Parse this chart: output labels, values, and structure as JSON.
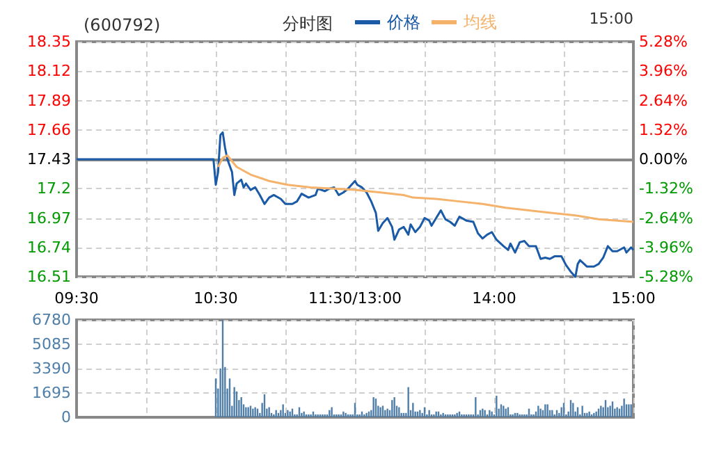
{
  "chart_data": [
    {
      "type": "line",
      "title": "(600792)",
      "subtitle": "分时图",
      "annotations": [
        "15:00"
      ],
      "legend": "top",
      "grid": true,
      "marker": "none",
      "categories": [
        "09:30",
        null,
        null,
        null,
        null,
        null,
        null,
        null,
        null,
        null,
        null,
        null,
        null,
        null,
        null,
        null,
        null,
        null,
        null,
        null,
        null,
        null,
        null,
        null,
        null,
        null,
        null,
        null,
        null,
        null,
        null,
        null,
        null,
        null,
        null,
        null,
        null,
        null,
        null,
        null,
        null,
        null,
        null,
        null,
        null,
        null,
        null,
        null,
        null,
        null,
        null,
        null,
        null,
        null,
        null,
        null,
        null,
        null,
        null,
        null,
        "10:30",
        null,
        null,
        null,
        null,
        null,
        null,
        null,
        null,
        null,
        null,
        null,
        null,
        null,
        null,
        null,
        null,
        null,
        null,
        null,
        null,
        null,
        null,
        null,
        null,
        null,
        null,
        null,
        null,
        null,
        null,
        null,
        null,
        null,
        null,
        null,
        null,
        null,
        null,
        null,
        null,
        null,
        null,
        null,
        null,
        null,
        null,
        null,
        null,
        null,
        null,
        null,
        null,
        null,
        null,
        null,
        null,
        null,
        null,
        null,
        "11:30/13:00",
        null,
        null,
        null,
        null,
        null,
        null,
        null,
        null,
        null,
        null,
        null,
        null,
        null,
        null,
        null,
        null,
        null,
        null,
        null,
        null,
        null,
        null,
        null,
        null,
        null,
        null,
        null,
        null,
        null,
        null,
        null,
        null,
        null,
        null,
        null,
        null,
        null,
        null,
        null,
        null,
        null,
        null,
        null,
        null,
        null,
        null,
        null,
        null,
        null,
        null,
        null,
        null,
        null,
        null,
        null,
        null,
        null,
        null,
        null,
        "14:00",
        null,
        null,
        null,
        null,
        null,
        null,
        null,
        null,
        null,
        null,
        null,
        null,
        null,
        null,
        null,
        null,
        null,
        null,
        null,
        null,
        null,
        null,
        null,
        null,
        null,
        null,
        null,
        null,
        null,
        null,
        null,
        null,
        null,
        null,
        null,
        null,
        null,
        null,
        null,
        null,
        null,
        null,
        null,
        null,
        null,
        null,
        null,
        null,
        null,
        null,
        null,
        null,
        null,
        null,
        null,
        null,
        null,
        null,
        null,
        "15:00"
      ],
      "ylim": [
        16.51,
        18.35
      ],
      "yticks": [
        16.51,
        16.74,
        16.97,
        17.2,
        17.43,
        17.66,
        17.89,
        18.12,
        18.35
      ],
      "y2lim": [
        -5.28,
        5.28
      ],
      "y2ticks": [
        {
          "value": -5.28,
          "label": "-5.28%"
        },
        {
          "value": -3.96,
          "label": "-3.96%"
        },
        {
          "value": -2.64,
          "label": "-2.64%"
        },
        {
          "value": -1.32,
          "label": "-1.32%"
        },
        {
          "value": 0,
          "label": "0.00%"
        },
        {
          "value": 1.32,
          "label": "1.32%"
        },
        {
          "value": 2.64,
          "label": "2.64%"
        },
        {
          "value": 3.96,
          "label": "3.96%"
        },
        {
          "value": 5.28,
          "label": "5.28%"
        }
      ],
      "series": [
        {
          "name": "价格",
          "color": "#1a5aa6",
          "values": [
            17.43,
            null,
            null,
            null,
            null,
            null,
            null,
            null,
            null,
            null,
            null,
            null,
            null,
            null,
            null,
            null,
            null,
            null,
            null,
            null,
            null,
            null,
            null,
            null,
            null,
            null,
            null,
            null,
            null,
            null,
            null,
            null,
            null,
            null,
            null,
            null,
            null,
            null,
            null,
            null,
            null,
            null,
            null,
            null,
            null,
            null,
            null,
            null,
            null,
            null,
            null,
            null,
            null,
            null,
            null,
            null,
            null,
            null,
            null,
            17.43,
            17.23,
            17.33,
            17.62,
            17.64,
            17.52,
            17.43,
            null,
            17.33,
            17.15,
            17.24,
            null,
            17.27,
            17.21,
            17.24,
            null,
            17.19,
            null,
            17.21,
            null,
            17.15,
            null,
            17.08,
            null,
            17.13,
            null,
            17.15,
            null,
            null,
            17.12,
            null,
            17.08,
            null,
            null,
            17.08,
            null,
            17.1,
            null,
            17.16,
            null,
            null,
            17.13,
            null,
            null,
            17.15,
            17.2,
            null,
            null,
            17.18,
            null,
            17.2,
            null,
            17.21,
            null,
            17.15,
            null,
            17.17,
            null,
            17.2,
            null,
            null,
            17.26,
            17.23,
            null,
            17.21,
            null,
            17.17,
            null,
            17.1,
            null,
            17.01,
            16.87,
            null,
            16.93,
            null,
            16.97,
            null,
            16.9,
            16.8,
            null,
            16.88,
            null,
            16.9,
            null,
            16.84,
            16.92,
            null,
            16.86,
            null,
            16.9,
            null,
            16.97,
            null,
            16.95,
            16.91,
            null,
            16.97,
            null,
            17.03,
            null,
            16.96,
            null,
            16.94,
            null,
            16.91,
            null,
            16.98,
            null,
            null,
            16.95,
            null,
            null,
            16.94,
            null,
            16.85,
            null,
            16.81,
            null,
            16.84,
            null,
            16.86,
            null,
            16.8,
            null,
            null,
            16.75,
            null,
            16.72,
            16.77,
            null,
            16.7,
            null,
            16.78,
            null,
            16.79,
            null,
            16.75,
            null,
            null,
            16.75,
            null,
            16.65,
            null,
            16.66,
            null,
            16.65,
            null,
            16.67,
            null,
            null,
            16.67,
            null,
            16.6,
            null,
            16.55,
            null,
            16.51,
            16.61,
            16.64,
            null,
            null,
            16.59,
            null,
            null,
            16.59,
            null,
            16.61,
            null,
            16.66,
            null,
            16.75,
            null,
            16.71,
            null,
            16.71,
            null,
            null,
            16.74,
            16.7,
            null,
            16.74,
            16.72
          ]
        },
        {
          "name": "均线",
          "color": "#f5b26b",
          "values": [
            null,
            null,
            null,
            null,
            null,
            null,
            null,
            null,
            null,
            null,
            null,
            null,
            null,
            null,
            null,
            null,
            null,
            null,
            null,
            null,
            null,
            null,
            null,
            null,
            null,
            null,
            null,
            null,
            null,
            null,
            null,
            null,
            null,
            null,
            null,
            null,
            null,
            null,
            null,
            null,
            null,
            null,
            null,
            null,
            null,
            null,
            null,
            null,
            null,
            null,
            null,
            null,
            null,
            null,
            null,
            null,
            null,
            null,
            null,
            null,
            null,
            17.37,
            null,
            17.44,
            null,
            17.46,
            null,
            null,
            null,
            17.37,
            null,
            null,
            null,
            null,
            null,
            17.31,
            null,
            null,
            null,
            null,
            null,
            null,
            null,
            17.26,
            null,
            null,
            null,
            null,
            null,
            null,
            null,
            17.23,
            null,
            null,
            null,
            null,
            null,
            null,
            null,
            null,
            null,
            17.21,
            null,
            null,
            null,
            null,
            null,
            null,
            null,
            null,
            null,
            17.2,
            null,
            null,
            null,
            null,
            null,
            null,
            null,
            null,
            17.19,
            null,
            null,
            null,
            null,
            null,
            null,
            null,
            null,
            null,
            null,
            17.17,
            null,
            null,
            null,
            null,
            null,
            null,
            null,
            null,
            null,
            17.15,
            null,
            null,
            null,
            17.13,
            null,
            null,
            null,
            null,
            null,
            null,
            null,
            null,
            null,
            17.12,
            null,
            null,
            null,
            null,
            null,
            null,
            null,
            null,
            null,
            17.1,
            null,
            null,
            null,
            null,
            null,
            null,
            null,
            null,
            null,
            17.08,
            null,
            null,
            null,
            null,
            null,
            null,
            null,
            null,
            null,
            17.05,
            null,
            null,
            null,
            null,
            null,
            null,
            null,
            null,
            null,
            17.03,
            null,
            null,
            null,
            null,
            null,
            null,
            null,
            null,
            null,
            17.01,
            null,
            null,
            null,
            null,
            null,
            null,
            null,
            null,
            null,
            16.99,
            null,
            null,
            null,
            null,
            null,
            null,
            null,
            null,
            null,
            16.96,
            null,
            null,
            null,
            null,
            null,
            null,
            null,
            null,
            null,
            null,
            null,
            null,
            null,
            null,
            16.94
          ]
        }
      ]
    },
    {
      "type": "bar",
      "tick_labels": "y",
      "grid": true,
      "color": "#4f7fa8",
      "categories": [
        null,
        null,
        null,
        null,
        null,
        null,
        null,
        null,
        null,
        null,
        null,
        null,
        null,
        null,
        null,
        null,
        null,
        null,
        null,
        null,
        null,
        null,
        null,
        null,
        null,
        null,
        null,
        null,
        null,
        null,
        null,
        null,
        null,
        null,
        null,
        null,
        null,
        null,
        null,
        null,
        null,
        null,
        null,
        null,
        null,
        null,
        null,
        null,
        null,
        null,
        null,
        null,
        null,
        null,
        null,
        null,
        null,
        null,
        null,
        null,
        null,
        null,
        null,
        null,
        null,
        null,
        null,
        null,
        null,
        null,
        null,
        null,
        null,
        null,
        null,
        null,
        null,
        null,
        null,
        null,
        null,
        null,
        null,
        null,
        null,
        null,
        null,
        null,
        null,
        null,
        null,
        null,
        null,
        null,
        null,
        null,
        null,
        null,
        null,
        null,
        null,
        null,
        null,
        null,
        null,
        null,
        null,
        null,
        null,
        null,
        null,
        null,
        null,
        null,
        null,
        null,
        null,
        null,
        null,
        null,
        null,
        null,
        null,
        null,
        null,
        null,
        null,
        null,
        null,
        null,
        null,
        null,
        null,
        null,
        null,
        null,
        null,
        null,
        null,
        null,
        null,
        null,
        null,
        null,
        null,
        null,
        null,
        null,
        null,
        null,
        null,
        null,
        null,
        null,
        null,
        null,
        null,
        null,
        null,
        null,
        null,
        null,
        null,
        null,
        null,
        null,
        null,
        null,
        null,
        null,
        null,
        null,
        null,
        null,
        null,
        null,
        null,
        null,
        null,
        null,
        null,
        null,
        null,
        null,
        null,
        null,
        null,
        null,
        null,
        null,
        null,
        null,
        null,
        null,
        null,
        null,
        null,
        null,
        null,
        null,
        null,
        null,
        null,
        null,
        null,
        null,
        null,
        null,
        null,
        null,
        null,
        null,
        null,
        null,
        null,
        null,
        null,
        null,
        null,
        null,
        null,
        null,
        null,
        null,
        null,
        null,
        null,
        null,
        null,
        null,
        null,
        null,
        null,
        null,
        null,
        null,
        null,
        null,
        null,
        null,
        null
      ],
      "ylim": [
        0,
        6780
      ],
      "yticks": [
        0,
        1695,
        3390,
        5085,
        6780
      ],
      "values": [
        null,
        null,
        null,
        null,
        null,
        null,
        null,
        null,
        null,
        null,
        null,
        null,
        null,
        null,
        null,
        null,
        null,
        null,
        null,
        null,
        null,
        null,
        null,
        null,
        null,
        null,
        null,
        null,
        null,
        null,
        null,
        null,
        null,
        null,
        null,
        null,
        null,
        null,
        null,
        null,
        null,
        null,
        null,
        null,
        null,
        null,
        null,
        null,
        null,
        null,
        null,
        null,
        null,
        null,
        null,
        null,
        null,
        null,
        null,
        null,
        2700,
        2000,
        3400,
        6780,
        3500,
        2000,
        2700,
        800,
        2100,
        1800,
        1200,
        1400,
        900,
        700,
        700,
        800,
        600,
        700,
        600,
        300,
        1000,
        1600,
        600,
        700,
        300,
        200,
        500,
        300,
        500,
        900,
        300,
        500,
        400,
        600,
        200,
        200,
        700,
        300,
        400,
        200,
        200,
        200,
        400,
        200,
        200,
        200,
        200,
        200,
        200,
        500,
        700,
        200,
        200,
        200,
        200,
        400,
        300,
        200,
        200,
        200,
        1000,
        200,
        200,
        400,
        200,
        300,
        400,
        500,
        1400,
        1300,
        800,
        700,
        800,
        500,
        600,
        500,
        1200,
        1400,
        800,
        700,
        300,
        300,
        300,
        2100,
        500,
        1000,
        400,
        400,
        500,
        300,
        700,
        200,
        500,
        200,
        200,
        400,
        400,
        200,
        300,
        200,
        200,
        200,
        200,
        200,
        300,
        400,
        200,
        200,
        200,
        200,
        200,
        200,
        1400,
        200,
        500,
        600,
        500,
        200,
        500,
        400,
        200,
        1500,
        600,
        900,
        800,
        600,
        700,
        200,
        200,
        300,
        300,
        200,
        200,
        200,
        200,
        600,
        200,
        200,
        400,
        800,
        600,
        500,
        900,
        900,
        500,
        500,
        200,
        500,
        300,
        700,
        1000,
        200,
        400,
        1200,
        1000,
        400,
        700,
        200,
        800,
        300,
        300,
        400,
        200,
        300,
        400,
        600,
        800,
        700,
        1200,
        700,
        800,
        1100,
        600,
        700,
        600,
        800,
        1300,
        900,
        900,
        900,
        null
      ]
    }
  ]
}
